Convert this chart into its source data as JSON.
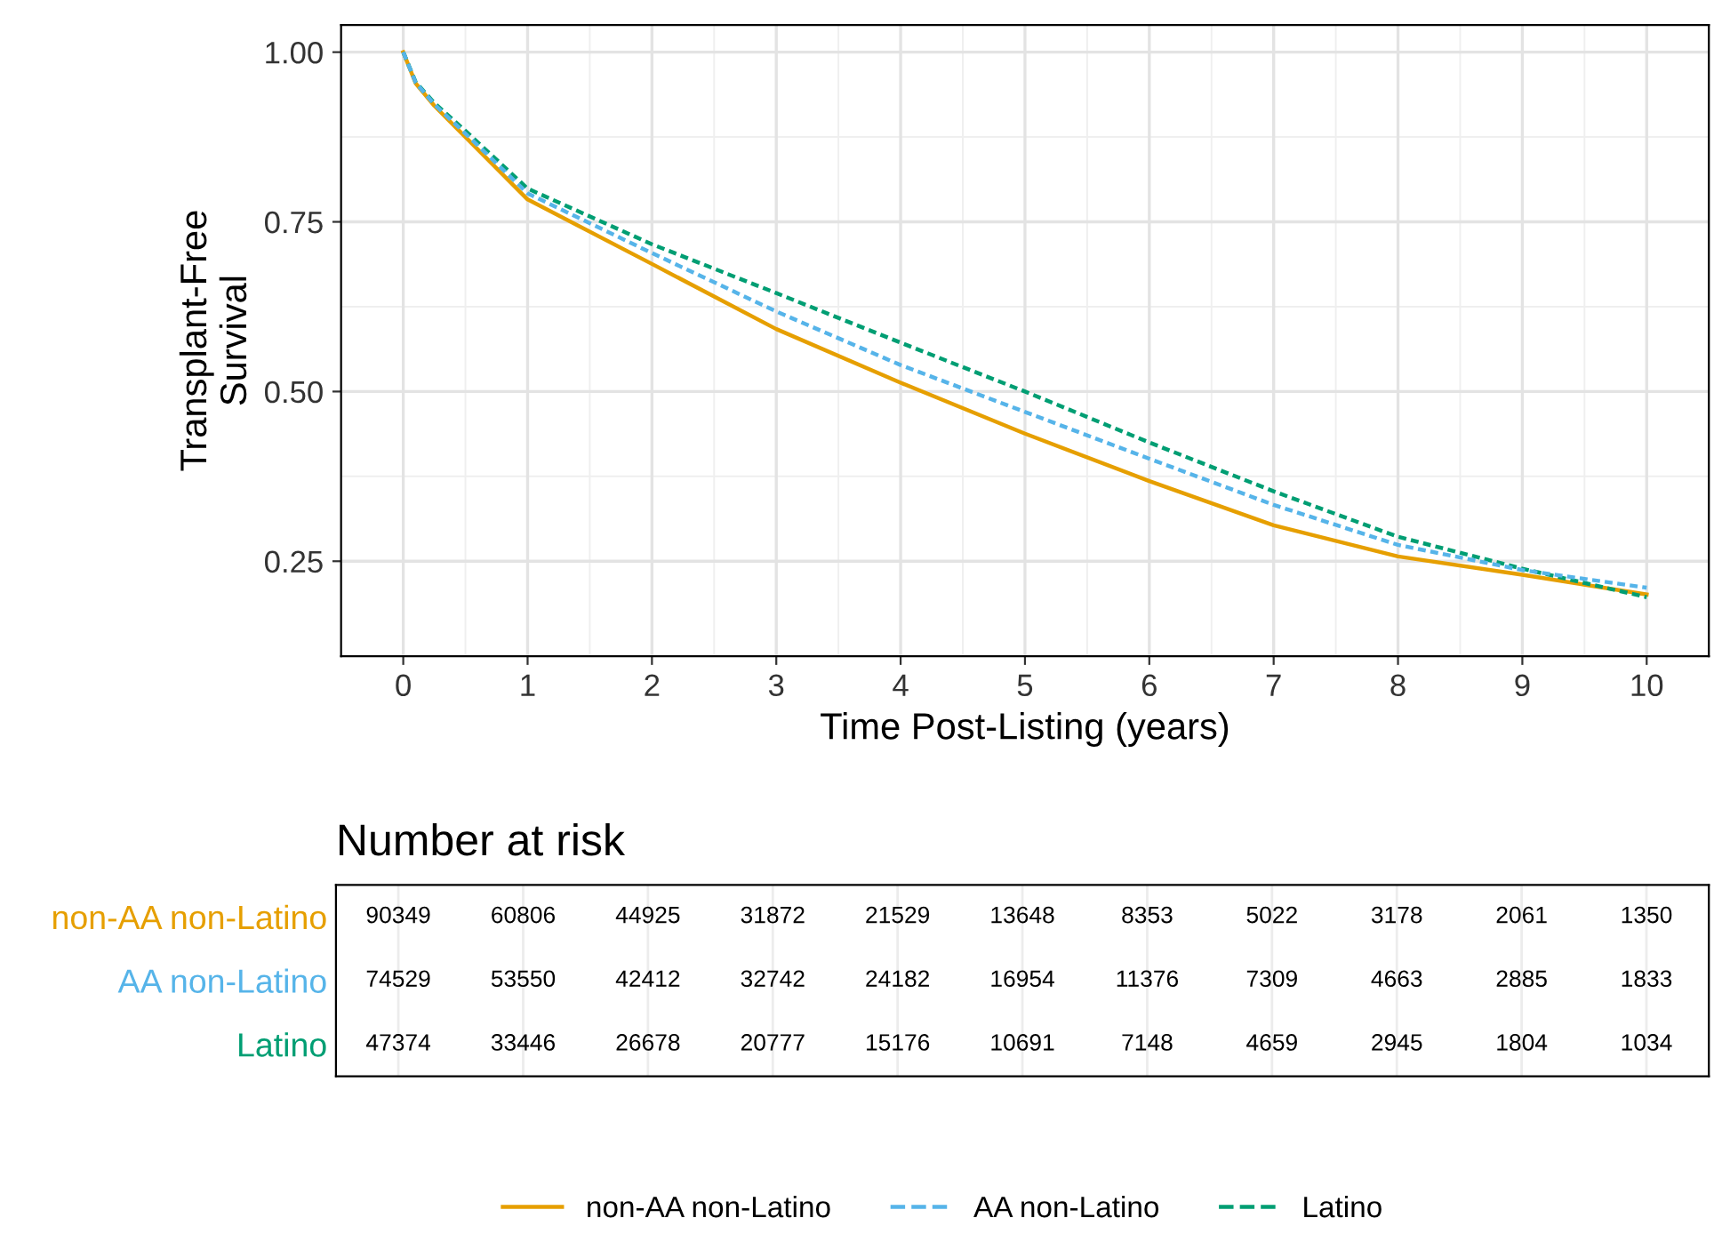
{
  "chart_data": [
    {
      "type": "line",
      "ylabel": "Transplant-Free\nSurvival",
      "xlabel": "Time Post-Listing (years)",
      "xlim": [
        -0.5,
        10.5
      ],
      "ylim": [
        0.11,
        1.04
      ],
      "xticks": [
        0,
        1,
        2,
        3,
        4,
        5,
        6,
        7,
        8,
        9,
        10
      ],
      "yticks": [
        {
          "value": 0.25,
          "label": "0.25"
        },
        {
          "value": 0.5,
          "label": "0.50"
        },
        {
          "value": 0.75,
          "label": "0.75"
        },
        {
          "value": 1.0,
          "label": "1.00"
        }
      ],
      "grid": true,
      "legend": "bottom",
      "marker": "none",
      "series": [
        {
          "name": "non-AA non-Latino",
          "color": "#e69f00",
          "line_style": "solid",
          "x": [
            0,
            0.1,
            0.25,
            0.5,
            1,
            2,
            3,
            4,
            5,
            6,
            7,
            8,
            9,
            10
          ],
          "values": [
            1.0,
            0.954,
            0.921,
            0.875,
            0.783,
            0.688,
            0.592,
            0.513,
            0.438,
            0.368,
            0.303,
            0.257,
            0.23,
            0.201
          ]
        },
        {
          "name": "AA non-Latino",
          "color": "#56b4e9",
          "line_style": "dashed",
          "x": [
            0,
            0.1,
            0.25,
            0.5,
            1,
            2,
            3,
            4,
            5,
            6,
            7,
            8,
            9,
            10
          ],
          "values": [
            1.0,
            0.955,
            0.923,
            0.88,
            0.792,
            0.704,
            0.618,
            0.539,
            0.47,
            0.401,
            0.333,
            0.274,
            0.237,
            0.211
          ]
        },
        {
          "name": "Latino",
          "color": "#009e73",
          "line_style": "dashed",
          "x": [
            0,
            0.1,
            0.25,
            0.5,
            1,
            2,
            3,
            4,
            5,
            6,
            7,
            8,
            9,
            10
          ],
          "values": [
            1.0,
            0.956,
            0.925,
            0.884,
            0.799,
            0.717,
            0.645,
            0.572,
            0.5,
            0.425,
            0.353,
            0.286,
            0.239,
            0.197
          ]
        }
      ]
    },
    {
      "type": "heatmap",
      "title": "Number at risk",
      "categories": [
        null,
        null,
        null,
        null,
        null,
        null,
        null,
        null,
        null,
        null,
        null
      ],
      "y_categories": [
        "non-AA non-Latino",
        "AA non-Latino",
        "Latino"
      ],
      "colors": [
        "#e69f00",
        "#56b4e9",
        "#009e73"
      ],
      "data_labels": true,
      "grid": "x",
      "cells": [
        [
          90349,
          60806,
          44925,
          31872,
          21529,
          13648,
          8353,
          5022,
          3178,
          2061,
          1350
        ],
        [
          74529,
          53550,
          42412,
          32742,
          24182,
          16954,
          11376,
          7309,
          4663,
          2885,
          1833
        ],
        [
          47374,
          33446,
          26678,
          20777,
          15176,
          10691,
          7148,
          4659,
          2945,
          1804,
          1034
        ]
      ]
    }
  ]
}
